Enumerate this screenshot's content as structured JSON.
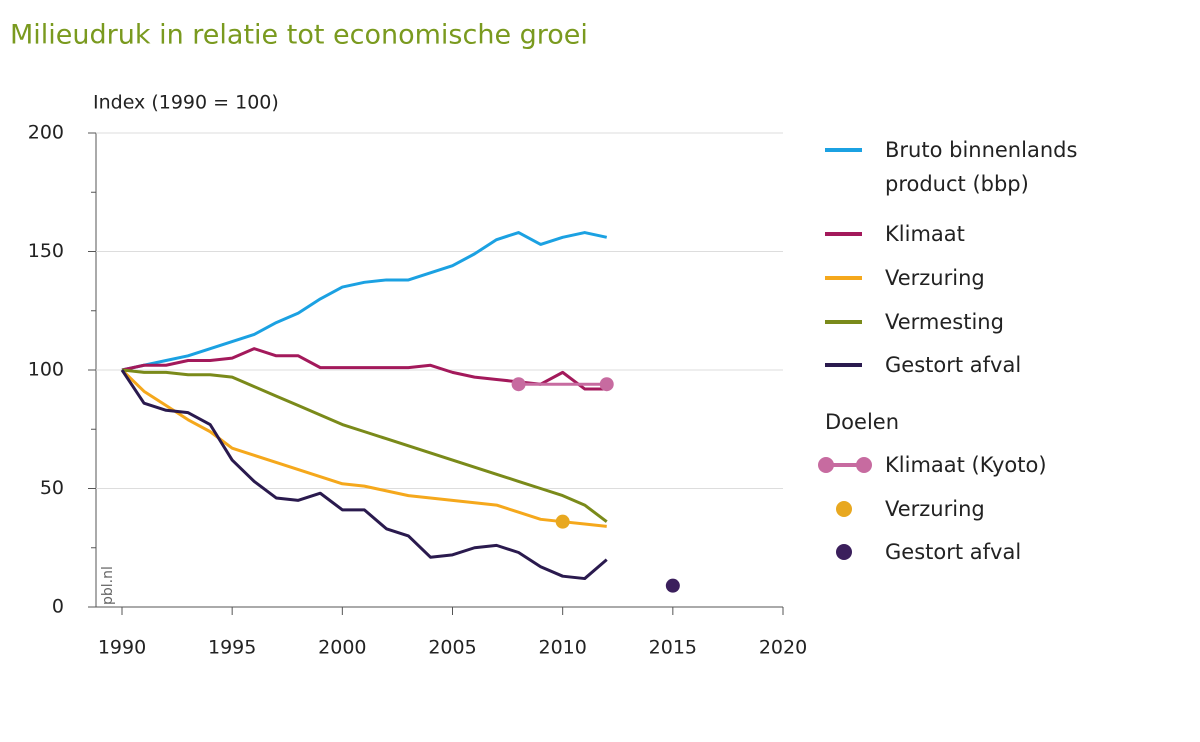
{
  "chart_data": {
    "type": "line",
    "title": "Milieudruk in relatie tot economische groei",
    "y_label": "Index (1990 = 100)",
    "watermark": "pbl.nl",
    "x": [
      1990,
      1991,
      1992,
      1993,
      1994,
      1995,
      1996,
      1997,
      1998,
      1999,
      2000,
      2001,
      2002,
      2003,
      2004,
      2005,
      2006,
      2007,
      2008,
      2009,
      2010,
      2011,
      2012
    ],
    "xlim": [
      1990,
      2020
    ],
    "xticks": [
      1990,
      1995,
      2000,
      2005,
      2010,
      2015,
      2020
    ],
    "ylim": [
      0,
      200
    ],
    "yticks": [
      0,
      50,
      100,
      150,
      200
    ],
    "yminorticks": [
      25,
      75,
      125,
      175
    ],
    "grid": true,
    "series": [
      {
        "name": "Bruto binnenlands product (bbp)",
        "color": "#1ba1e2",
        "values": [
          100,
          102,
          104,
          106,
          109,
          112,
          115,
          120,
          124,
          130,
          135,
          137,
          138,
          138,
          141,
          144,
          149,
          155,
          158,
          153,
          156,
          158,
          156
        ]
      },
      {
        "name": "Klimaat",
        "color": "#a3195b",
        "values": [
          100,
          102,
          102,
          104,
          104,
          105,
          109,
          106,
          106,
          101,
          101,
          101,
          101,
          101,
          102,
          99,
          97,
          96,
          95,
          94,
          99,
          92,
          92
        ]
      },
      {
        "name": "Verzuring",
        "color": "#f5a81c",
        "values": [
          100,
          91,
          85,
          79,
          74,
          67,
          64,
          61,
          58,
          55,
          52,
          51,
          49,
          47,
          46,
          45,
          44,
          43,
          40,
          37,
          36,
          35,
          34
        ]
      },
      {
        "name": "Vermesting",
        "color": "#7a8a1a",
        "values": [
          100,
          99,
          99,
          98,
          98,
          97,
          93,
          89,
          85,
          81,
          77,
          74,
          71,
          68,
          65,
          62,
          59,
          56,
          53,
          50,
          47,
          43,
          36
        ]
      },
      {
        "name": "Gestort afval",
        "color": "#2a1a4e",
        "values": [
          100,
          86,
          83,
          82,
          77,
          62,
          53,
          46,
          45,
          48,
          41,
          41,
          33,
          30,
          21,
          22,
          25,
          26,
          23,
          17,
          13,
          12,
          20
        ]
      }
    ],
    "targets_title": "Doelen",
    "targets": [
      {
        "name": "Klimaat (Kyoto)",
        "color": "#c76ba0",
        "x": [
          2008,
          2012
        ],
        "values": [
          94,
          94
        ]
      },
      {
        "name": "Verzuring",
        "color": "#e8a820",
        "x": [
          2010
        ],
        "values": [
          36
        ]
      },
      {
        "name": "Gestort afval",
        "color": "#3b1f5c",
        "x": [
          2015
        ],
        "values": [
          9
        ]
      }
    ]
  }
}
